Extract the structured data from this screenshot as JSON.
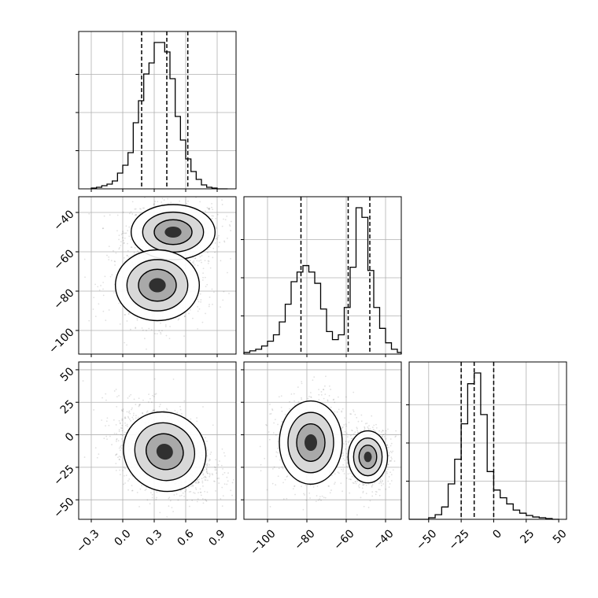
{
  "chart_data": {
    "type": "corner",
    "grid": true,
    "parameters": [
      {
        "range": [
          -0.42,
          1.08
        ],
        "ticks": [
          -0.3,
          0.0,
          0.3,
          0.6,
          0.9
        ],
        "tick_labels": [
          "−0.3",
          "0.0",
          "0.3",
          "0.6",
          "0.9"
        ]
      },
      {
        "range": [
          -112,
          -32
        ],
        "ticks": [
          -100,
          -80,
          -60,
          -40
        ],
        "tick_labels": [
          "−100",
          "−80",
          "−60",
          "−40"
        ]
      },
      {
        "range": [
          -65,
          56
        ],
        "ticks": [
          -50,
          -25,
          0,
          25,
          50
        ],
        "tick_labels": [
          "−50",
          "−25",
          "0",
          "25",
          "50"
        ]
      }
    ],
    "histograms": [
      {
        "parameter": 0,
        "bin_edges": [
          -0.3,
          -0.25,
          -0.2,
          -0.15,
          -0.1,
          -0.05,
          0.0,
          0.05,
          0.1,
          0.15,
          0.2,
          0.25,
          0.3,
          0.35,
          0.4,
          0.45,
          0.5,
          0.55,
          0.6,
          0.65,
          0.7,
          0.75,
          0.8,
          0.85,
          0.9,
          0.95,
          1.0
        ],
        "counts": [
          0.005,
          0.01,
          0.02,
          0.03,
          0.05,
          0.1,
          0.15,
          0.23,
          0.42,
          0.56,
          0.73,
          0.8,
          0.93,
          0.93,
          0.87,
          0.7,
          0.46,
          0.31,
          0.19,
          0.11,
          0.06,
          0.025,
          0.01,
          0.005,
          0,
          0
        ],
        "quantiles": [
          0.18,
          0.42,
          0.62
        ]
      },
      {
        "parameter": 1,
        "bin_edges": [
          -112,
          -109,
          -106,
          -103,
          -100,
          -97,
          -94,
          -91,
          -88,
          -85,
          -82,
          -79,
          -76,
          -73,
          -70,
          -67,
          -64,
          -61,
          -58,
          -55,
          -52,
          -49,
          -46,
          -43,
          -40,
          -37,
          -34,
          -32
        ],
        "counts": [
          0.01,
          0.02,
          0.03,
          0.05,
          0.08,
          0.12,
          0.2,
          0.31,
          0.45,
          0.51,
          0.55,
          0.51,
          0.44,
          0.28,
          0.14,
          0.09,
          0.12,
          0.29,
          0.54,
          0.91,
          0.85,
          0.52,
          0.29,
          0.16,
          0.07,
          0.03,
          0.01
        ],
        "quantiles": [
          -83,
          -59,
          -48
        ]
      },
      {
        "parameter": 2,
        "bin_edges": [
          -65,
          -60,
          -55,
          -50,
          -45,
          -40,
          -35,
          -30,
          -25,
          -20,
          -15,
          -10,
          -5,
          0,
          5,
          10,
          15,
          20,
          25,
          30,
          35,
          40,
          45,
          50
        ],
        "counts": [
          0,
          0,
          0,
          0.01,
          0.03,
          0.08,
          0.23,
          0.39,
          0.62,
          0.88,
          0.95,
          0.68,
          0.31,
          0.19,
          0.14,
          0.1,
          0.06,
          0.04,
          0.025,
          0.015,
          0.01,
          0.005,
          0
        ],
        "quantiles": [
          -25,
          -15,
          0
        ]
      }
    ],
    "pairs": [
      {
        "x_param": 0,
        "y_param": 1,
        "samples": [
          {
            "center": [
              0.48,
              -50
            ],
            "sd": [
              0.2,
              7
            ],
            "weight": 0.55
          },
          {
            "center": [
              0.33,
              -77
            ],
            "sd": [
              0.2,
              9
            ],
            "weight": 0.45
          }
        ]
      },
      {
        "x_param": 0,
        "y_param": 2,
        "samples": [
          {
            "center": [
              0.4,
              -13
            ],
            "sd": [
              0.2,
              15
            ],
            "weight": 1.0,
            "corr": -0.35
          }
        ]
      },
      {
        "x_param": 1,
        "y_param": 2,
        "samples": [
          {
            "center": [
              -78,
              -6
            ],
            "sd": [
              8,
              16
            ],
            "weight": 0.5
          },
          {
            "center": [
              -49,
              -17
            ],
            "sd": [
              5,
              10
            ],
            "weight": 0.5
          }
        ]
      }
    ]
  }
}
